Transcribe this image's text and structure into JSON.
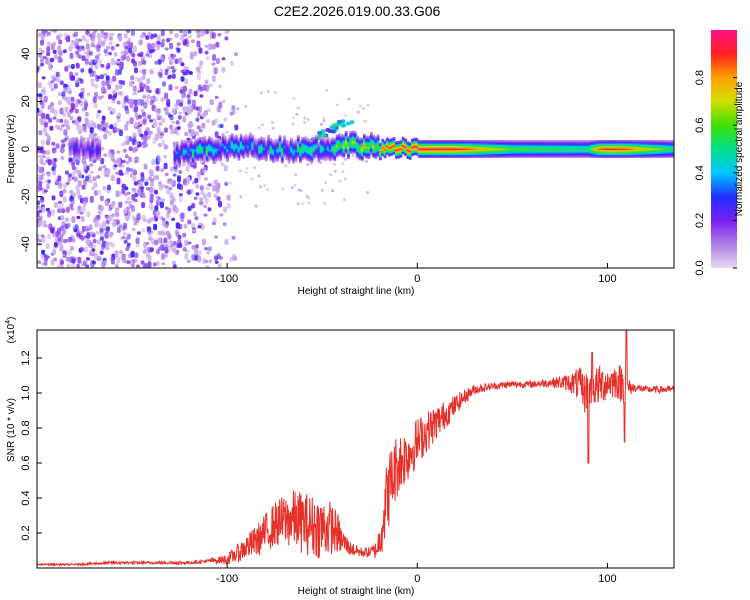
{
  "title": "C2E2.2026.019.00.33.G06",
  "chart_data": [
    {
      "type": "heatmap",
      "title": "C2E2.2026.019.00.33.G06",
      "xlabel": "Height of straight line (km)",
      "ylabel": "Frequency (Hz)",
      "xlim": [
        -200,
        135
      ],
      "ylim": [
        -50,
        50
      ],
      "xticks": [
        -100,
        0,
        100
      ],
      "xtick_labels": [
        "-100",
        "0",
        "100"
      ],
      "yticks": [
        -40,
        -20,
        0,
        20,
        40
      ],
      "ytick_labels": [
        "-40",
        "-20",
        "0",
        "20",
        "40"
      ],
      "colorbar": {
        "label": "Normalized spectral amplitude",
        "range": [
          0.0,
          1.0
        ],
        "ticks": [
          0.0,
          0.2,
          0.4,
          0.6,
          0.8
        ],
        "tick_labels": [
          "0.0",
          "0.2",
          "0.4",
          "0.6",
          "0.8"
        ],
        "colors": [
          "#e6d8f2",
          "#b07ee6",
          "#7a1ef0",
          "#2030ff",
          "#00c8ff",
          "#00e08a",
          "#40e000",
          "#d0e000",
          "#ffa000",
          "#ff2020",
          "#ff1088"
        ]
      },
      "ridge": {
        "x": [
          -175,
          -125,
          -110,
          -90,
          -70,
          -50,
          -35,
          -25,
          -15,
          0,
          20,
          50,
          90,
          95,
          100,
          110,
          135
        ],
        "freq": [
          0,
          -2,
          0,
          1,
          0,
          0,
          2,
          1,
          0,
          0,
          0,
          0,
          0,
          0,
          0,
          0,
          0
        ],
        "amplitude": [
          0.3,
          0.45,
          0.55,
          0.45,
          0.55,
          0.55,
          0.7,
          0.8,
          0.9,
          0.95,
          0.95,
          0.62,
          0.55,
          0.85,
          0.92,
          0.88,
          0.55
        ]
      },
      "noise_region": [
        -200,
        -98
      ]
    },
    {
      "type": "line",
      "xlabel": "Height of straight line (km)",
      "ylabel": "SNR (10 * v/v)",
      "scale_label": "(x10",
      "scale_exponent": "4",
      "xlim": [
        -200,
        135
      ],
      "ylim": [
        0,
        1.36
      ],
      "xticks": [
        -100,
        0,
        100
      ],
      "xtick_labels": [
        "-100",
        "0",
        "100"
      ],
      "yticks": [
        0.2,
        0.4,
        0.6,
        0.8,
        1.0,
        1.2
      ],
      "ytick_labels": [
        "0.2",
        "0.4",
        "0.6",
        "0.8",
        "1.0",
        "1.2"
      ],
      "color": "#e8302a",
      "series": [
        {
          "name": "SNR",
          "x": [
            -200,
            -180,
            -160,
            -140,
            -120,
            -110,
            -100,
            -95,
            -90,
            -85,
            -80,
            -75,
            -70,
            -65,
            -60,
            -55,
            -50,
            -45,
            -42,
            -40,
            -35,
            -30,
            -25,
            -22,
            -20,
            -18,
            -15,
            -12,
            -10,
            -5,
            0,
            5,
            10,
            15,
            20,
            25,
            30,
            40,
            50,
            60,
            70,
            80,
            85,
            88,
            90,
            95,
            100,
            105,
            108,
            110,
            115,
            120,
            125,
            130,
            135
          ],
          "y": [
            0.02,
            0.02,
            0.03,
            0.03,
            0.03,
            0.04,
            0.05,
            0.08,
            0.12,
            0.15,
            0.2,
            0.25,
            0.27,
            0.28,
            0.26,
            0.24,
            0.23,
            0.23,
            0.2,
            0.16,
            0.11,
            0.09,
            0.09,
            0.1,
            0.15,
            0.3,
            0.45,
            0.55,
            0.6,
            0.65,
            0.72,
            0.78,
            0.83,
            0.88,
            0.93,
            0.98,
            1.02,
            1.04,
            1.05,
            1.05,
            1.06,
            1.06,
            1.05,
            1.0,
            1.02,
            1.04,
            1.06,
            1.07,
            1.05,
            1.03,
            1.03,
            1.02,
            1.02,
            1.02,
            1.02
          ],
          "noise_amp": [
            0.005,
            0.005,
            0.008,
            0.008,
            0.01,
            0.01,
            0.03,
            0.05,
            0.07,
            0.09,
            0.11,
            0.13,
            0.15,
            0.17,
            0.18,
            0.18,
            0.18,
            0.15,
            0.12,
            0.08,
            0.04,
            0.03,
            0.03,
            0.05,
            0.1,
            0.2,
            0.22,
            0.2,
            0.18,
            0.16,
            0.14,
            0.12,
            0.1,
            0.08,
            0.06,
            0.04,
            0.03,
            0.02,
            0.02,
            0.02,
            0.025,
            0.05,
            0.1,
            0.12,
            0.1,
            0.12,
            0.1,
            0.1,
            0.12,
            0.06,
            0.02,
            0.02,
            0.02,
            0.02,
            0.02
          ]
        }
      ],
      "spikes": [
        {
          "x": 90,
          "y": 0.6
        },
        {
          "x": 92,
          "y": 1.23
        },
        {
          "x": 109,
          "y": 0.72
        },
        {
          "x": 110,
          "y": 1.36
        }
      ]
    }
  ]
}
